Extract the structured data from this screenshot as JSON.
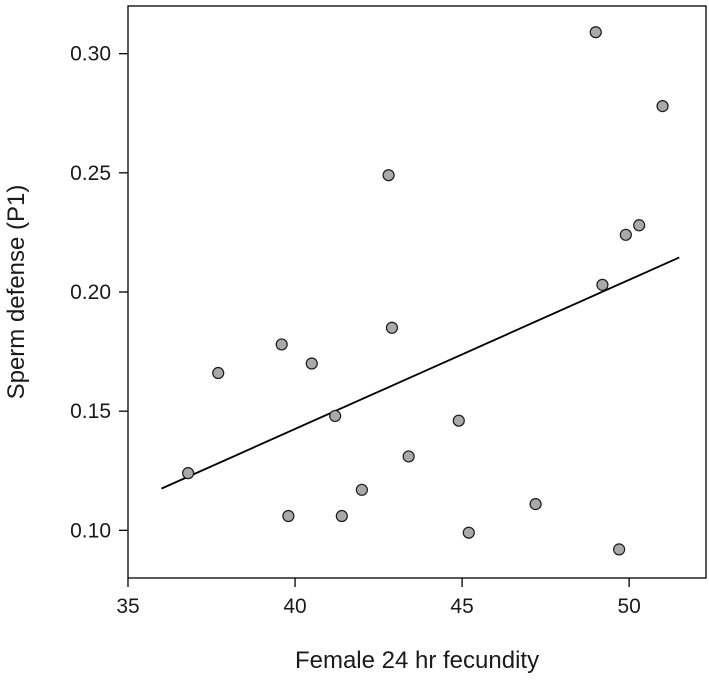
{
  "chart_data": {
    "type": "scatter",
    "title": "",
    "xlabel": "Female 24 hr fecundity",
    "ylabel": "Sperm defense (P1)",
    "xlim": [
      35,
      52.3
    ],
    "ylim": [
      0.08,
      0.32
    ],
    "xticks": [
      35,
      40,
      45,
      50
    ],
    "xtick_labels": [
      "35",
      "40",
      "45",
      "50"
    ],
    "yticks": [
      0.1,
      0.15,
      0.2,
      0.25,
      0.3
    ],
    "ytick_labels": [
      "0.10",
      "0.15",
      "0.20",
      "0.25",
      "0.30"
    ],
    "grid": false,
    "legend": "none",
    "point_color": "#a9a9a9",
    "point_edge_color": "#1a1a1a",
    "line_color": "#000000",
    "series": [
      {
        "x": [
          36.8,
          37.7,
          39.6,
          39.8,
          40.5,
          41.2,
          41.4,
          42.0,
          42.8,
          42.9,
          43.4,
          44.9,
          45.2,
          47.2,
          49.0,
          49.2,
          49.7,
          49.9,
          50.3,
          51.0
        ],
        "y": [
          0.124,
          0.166,
          0.178,
          0.106,
          0.17,
          0.148,
          0.106,
          0.117,
          0.249,
          0.185,
          0.131,
          0.146,
          0.099,
          0.111,
          0.309,
          0.203,
          0.092,
          0.224,
          0.228,
          0.278
        ]
      }
    ],
    "fit_line": {
      "x": [
        36.0,
        51.5
      ],
      "y": [
        0.1175,
        0.2145
      ]
    }
  }
}
